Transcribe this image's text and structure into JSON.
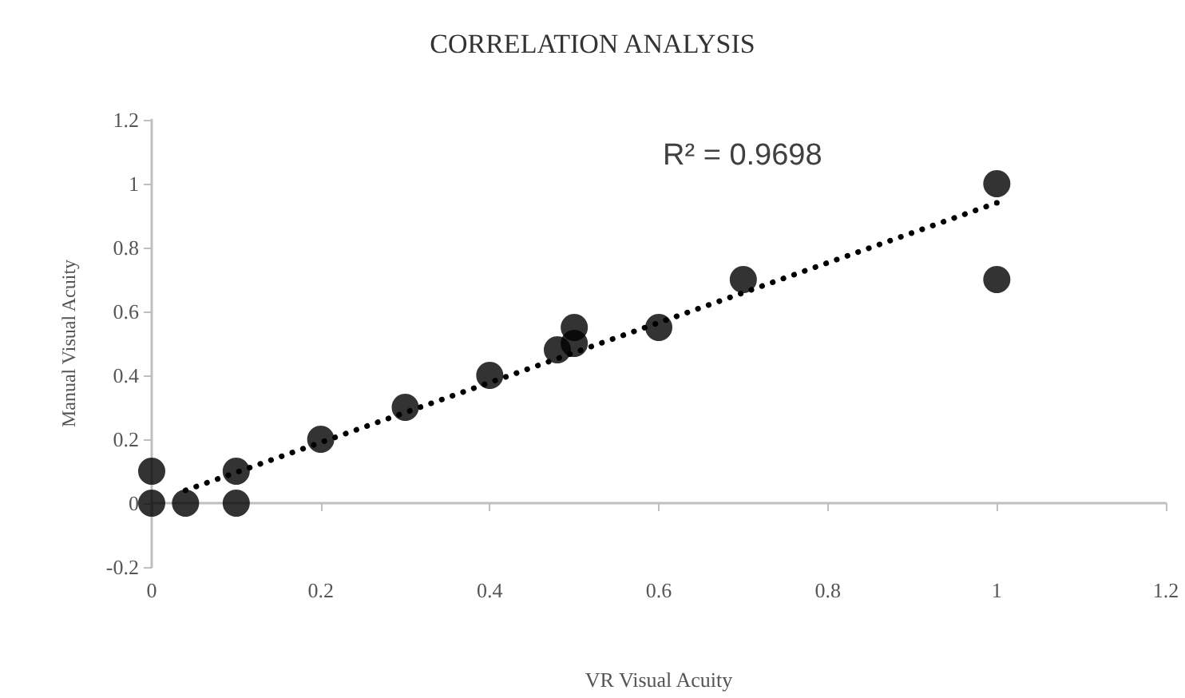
{
  "chart_data": {
    "type": "scatter",
    "title": "CORRELATION ANALYSIS",
    "xlabel": "VR Visual Acuity",
    "ylabel": "Manual Visual Acuity",
    "annotations": [
      "R² = 0.9698"
    ],
    "xlim": [
      0,
      1.2
    ],
    "xticks": [
      0,
      0.2,
      0.4,
      0.6,
      0.8,
      1,
      1.2
    ],
    "ylim": [
      -0.2,
      1.2
    ],
    "yticks": [
      -0.2,
      0,
      0.2,
      0.4,
      0.6,
      0.8,
      1,
      1.2
    ],
    "marker": "circle",
    "series": [
      {
        "color": "#000000",
        "x": [
          0,
          0,
          0.04,
          0.1,
          0.1,
          0.2,
          0.3,
          0.4,
          0.48,
          0.5,
          0.5,
          0.6,
          0.7,
          1,
          1
        ],
        "values": [
          0.1,
          0,
          0,
          0.1,
          0,
          0.2,
          0.3,
          0.4,
          0.48,
          0.5,
          0.55,
          0.55,
          0.7,
          1,
          0.7
        ]
      },
      {
        "type": "line",
        "color": "#000000",
        "marker": "none",
        "line_style": "dotted",
        "x": [
          0.04,
          1
        ],
        "values": [
          0.04,
          0.94
        ]
      }
    ]
  }
}
